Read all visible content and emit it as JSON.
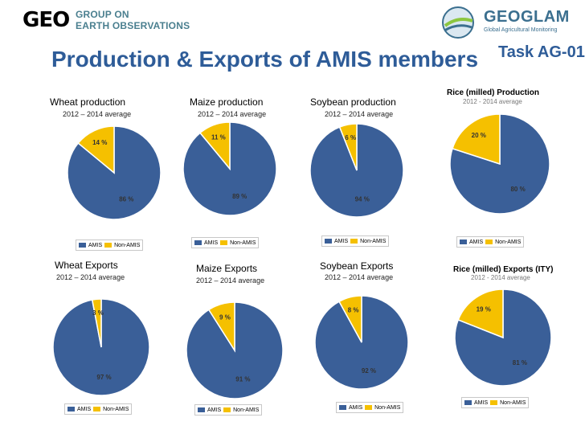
{
  "header": {
    "geo_logo_mark": "GEO",
    "geo_logo_line1": "GROUP ON",
    "geo_logo_line2": "EARTH OBSERVATIONS",
    "geoglam_name": "GEOGLAM",
    "geoglam_sub": "Global Agricultural Monitoring",
    "title": "Production & Exports of AMIS members",
    "task": "Task AG-01"
  },
  "colors": {
    "amis": "#3a5f98",
    "non_amis": "#f5c000"
  },
  "legend": {
    "amis": "AMIS",
    "non_amis": "Non-AMIS"
  },
  "chart_data": [
    {
      "type": "pie",
      "title": "Wheat production",
      "subtitle": "2012 – 2014 average",
      "categories": [
        "AMIS",
        "Non-AMIS"
      ],
      "values": [
        86,
        14
      ],
      "labels": [
        "86 %",
        "14 %"
      ]
    },
    {
      "type": "pie",
      "title": "Maize production",
      "subtitle": "2012 – 2014 average",
      "categories": [
        "AMIS",
        "Non-AMIS"
      ],
      "values": [
        89,
        11
      ],
      "labels": [
        "89 %",
        "11 %"
      ]
    },
    {
      "type": "pie",
      "title": "Soybean production",
      "subtitle": "2012 – 2014 average",
      "categories": [
        "AMIS",
        "Non-AMIS"
      ],
      "values": [
        94,
        6
      ],
      "labels": [
        "94 %",
        "6 %"
      ]
    },
    {
      "type": "pie",
      "title": "Rice (milled) Production",
      "subtitle": "2012 - 2014 average",
      "categories": [
        "AMIS",
        "Non-AMIS"
      ],
      "values": [
        80,
        20
      ],
      "labels": [
        "80 %",
        "20 %"
      ]
    },
    {
      "type": "pie",
      "title": "Wheat Exports",
      "subtitle": "2012 – 2014 average",
      "categories": [
        "AMIS",
        "Non-AMIS"
      ],
      "values": [
        97,
        3
      ],
      "labels": [
        "97 %",
        "3 %"
      ]
    },
    {
      "type": "pie",
      "title": "Maize Exports",
      "subtitle": "2012 – 2014 average",
      "categories": [
        "AMIS",
        "Non-AMIS"
      ],
      "values": [
        91,
        9
      ],
      "labels": [
        "91 %",
        "9 %"
      ]
    },
    {
      "type": "pie",
      "title": "Soybean Exports",
      "subtitle": "2012 – 2014 average",
      "categories": [
        "AMIS",
        "Non-AMIS"
      ],
      "values": [
        92,
        8
      ],
      "labels": [
        "92 %",
        "8 %"
      ]
    },
    {
      "type": "pie",
      "title": "Rice (milled) Exports (ITY)",
      "subtitle": "2012 - 2014 average",
      "categories": [
        "AMIS",
        "Non-AMIS"
      ],
      "values": [
        81,
        19
      ],
      "labels": [
        "81 %",
        "19 %"
      ]
    }
  ]
}
